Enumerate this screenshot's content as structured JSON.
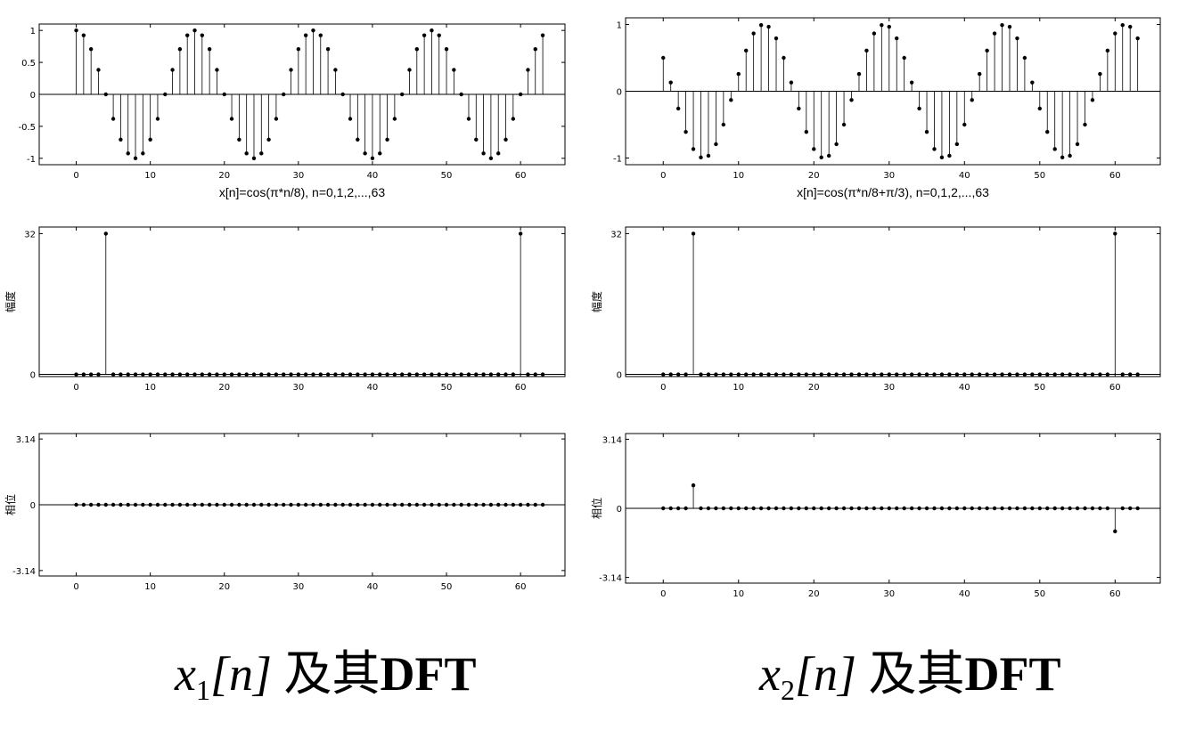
{
  "chart_data": [
    {
      "type": "stem",
      "xlabel": "x[n]=cos(π*n/8),    n=0,1,2,...,63",
      "ylabel": "",
      "xlim": [
        -5,
        66
      ],
      "ylim": [
        -1.1,
        1.1
      ],
      "xticks": [
        0,
        10,
        20,
        30,
        40,
        50,
        60
      ],
      "yticks": [
        1,
        0.5,
        0,
        -0.5,
        -1
      ],
      "ytick_labels": [
        "1",
        "0.5",
        "0",
        "-0.5",
        "-1"
      ],
      "x": [
        0,
        1,
        2,
        3,
        4,
        5,
        6,
        7,
        8,
        9,
        10,
        11,
        12,
        13,
        14,
        15,
        16,
        17,
        18,
        19,
        20,
        21,
        22,
        23,
        24,
        25,
        26,
        27,
        28,
        29,
        30,
        31,
        32,
        33,
        34,
        35,
        36,
        37,
        38,
        39,
        40,
        41,
        42,
        43,
        44,
        45,
        46,
        47,
        48,
        49,
        50,
        51,
        52,
        53,
        54,
        55,
        56,
        57,
        58,
        59,
        60,
        61,
        62,
        63
      ],
      "y": [
        1,
        0.924,
        0.707,
        0.383,
        0,
        -0.383,
        -0.707,
        -0.924,
        -1,
        -0.924,
        -0.707,
        -0.383,
        0,
        0.383,
        0.707,
        0.924,
        1,
        0.924,
        0.707,
        0.383,
        0,
        -0.383,
        -0.707,
        -0.924,
        -1,
        -0.924,
        -0.707,
        -0.383,
        0,
        0.383,
        0.707,
        0.924,
        1,
        0.924,
        0.707,
        0.383,
        0,
        -0.383,
        -0.707,
        -0.924,
        -1,
        -0.924,
        -0.707,
        -0.383,
        0,
        0.383,
        0.707,
        0.924,
        1,
        0.924,
        0.707,
        0.383,
        0,
        -0.383,
        -0.707,
        -0.924,
        -1,
        -0.924,
        -0.707,
        -0.383,
        0,
        0.383,
        0.707,
        0.924
      ]
    },
    {
      "type": "stem",
      "xlabel": "x[n]=cos(π*n/8+π/3),    n=0,1,2,...,63",
      "ylabel": "",
      "xlim": [
        -5,
        66
      ],
      "ylim": [
        -1.1,
        1.1
      ],
      "xticks": [
        0,
        10,
        20,
        30,
        40,
        50,
        60
      ],
      "yticks": [
        1,
        0,
        -1
      ],
      "ytick_labels": [
        "1",
        "0",
        "-1"
      ],
      "x": [
        0,
        1,
        2,
        3,
        4,
        5,
        6,
        7,
        8,
        9,
        10,
        11,
        12,
        13,
        14,
        15,
        16,
        17,
        18,
        19,
        20,
        21,
        22,
        23,
        24,
        25,
        26,
        27,
        28,
        29,
        30,
        31,
        32,
        33,
        34,
        35,
        36,
        37,
        38,
        39,
        40,
        41,
        42,
        43,
        44,
        45,
        46,
        47,
        48,
        49,
        50,
        51,
        52,
        53,
        54,
        55,
        56,
        57,
        58,
        59,
        60,
        61,
        62,
        63
      ],
      "y": [
        0.5,
        0.131,
        -0.259,
        -0.609,
        -0.866,
        -0.991,
        -0.966,
        -0.793,
        -0.5,
        -0.131,
        0.259,
        0.609,
        0.866,
        0.991,
        0.966,
        0.793,
        0.5,
        0.131,
        -0.259,
        -0.609,
        -0.866,
        -0.991,
        -0.966,
        -0.793,
        -0.5,
        -0.131,
        0.259,
        0.609,
        0.866,
        0.991,
        0.966,
        0.793,
        0.5,
        0.131,
        -0.259,
        -0.609,
        -0.866,
        -0.991,
        -0.966,
        -0.793,
        -0.5,
        -0.131,
        0.259,
        0.609,
        0.866,
        0.991,
        0.966,
        0.793,
        0.5,
        0.131,
        -0.259,
        -0.609,
        -0.866,
        -0.991,
        -0.966,
        -0.793,
        -0.5,
        -0.131,
        0.259,
        0.609,
        0.866,
        0.991,
        0.966,
        0.793
      ]
    },
    {
      "type": "stem",
      "xlabel": "",
      "ylabel": "幅度",
      "xlim": [
        -5,
        66
      ],
      "ylim": [
        -0.5,
        33.5
      ],
      "xticks": [
        0,
        10,
        20,
        30,
        40,
        50,
        60
      ],
      "yticks": [
        32,
        0
      ],
      "ytick_labels": [
        "32",
        "0"
      ],
      "x": [
        0,
        1,
        2,
        3,
        4,
        5,
        6,
        7,
        8,
        9,
        10,
        11,
        12,
        13,
        14,
        15,
        16,
        17,
        18,
        19,
        20,
        21,
        22,
        23,
        24,
        25,
        26,
        27,
        28,
        29,
        30,
        31,
        32,
        33,
        34,
        35,
        36,
        37,
        38,
        39,
        40,
        41,
        42,
        43,
        44,
        45,
        46,
        47,
        48,
        49,
        50,
        51,
        52,
        53,
        54,
        55,
        56,
        57,
        58,
        59,
        60,
        61,
        62,
        63
      ],
      "y": [
        0,
        0,
        0,
        0,
        32,
        0,
        0,
        0,
        0,
        0,
        0,
        0,
        0,
        0,
        0,
        0,
        0,
        0,
        0,
        0,
        0,
        0,
        0,
        0,
        0,
        0,
        0,
        0,
        0,
        0,
        0,
        0,
        0,
        0,
        0,
        0,
        0,
        0,
        0,
        0,
        0,
        0,
        0,
        0,
        0,
        0,
        0,
        0,
        0,
        0,
        0,
        0,
        0,
        0,
        0,
        0,
        0,
        0,
        0,
        0,
        32,
        0,
        0,
        0
      ]
    },
    {
      "type": "stem",
      "xlabel": "",
      "ylabel": "幅度",
      "xlim": [
        -5,
        66
      ],
      "ylim": [
        -0.5,
        33.5
      ],
      "xticks": [
        0,
        10,
        20,
        30,
        40,
        50,
        60
      ],
      "yticks": [
        32,
        0
      ],
      "ytick_labels": [
        "32",
        "0"
      ],
      "x": [
        0,
        1,
        2,
        3,
        4,
        5,
        6,
        7,
        8,
        9,
        10,
        11,
        12,
        13,
        14,
        15,
        16,
        17,
        18,
        19,
        20,
        21,
        22,
        23,
        24,
        25,
        26,
        27,
        28,
        29,
        30,
        31,
        32,
        33,
        34,
        35,
        36,
        37,
        38,
        39,
        40,
        41,
        42,
        43,
        44,
        45,
        46,
        47,
        48,
        49,
        50,
        51,
        52,
        53,
        54,
        55,
        56,
        57,
        58,
        59,
        60,
        61,
        62,
        63
      ],
      "y": [
        0,
        0,
        0,
        0,
        32,
        0,
        0,
        0,
        0,
        0,
        0,
        0,
        0,
        0,
        0,
        0,
        0,
        0,
        0,
        0,
        0,
        0,
        0,
        0,
        0,
        0,
        0,
        0,
        0,
        0,
        0,
        0,
        0,
        0,
        0,
        0,
        0,
        0,
        0,
        0,
        0,
        0,
        0,
        0,
        0,
        0,
        0,
        0,
        0,
        0,
        0,
        0,
        0,
        0,
        0,
        0,
        0,
        0,
        0,
        0,
        32,
        0,
        0,
        0
      ]
    },
    {
      "type": "stem",
      "xlabel": "",
      "ylabel": "相位",
      "xlim": [
        -5,
        66
      ],
      "ylim": [
        -3.4,
        3.4
      ],
      "xticks": [
        0,
        10,
        20,
        30,
        40,
        50,
        60
      ],
      "yticks": [
        3.14,
        0,
        -3.14
      ],
      "ytick_labels": [
        "3.14",
        "0",
        "-3.14"
      ],
      "x": [
        0,
        1,
        2,
        3,
        4,
        5,
        6,
        7,
        8,
        9,
        10,
        11,
        12,
        13,
        14,
        15,
        16,
        17,
        18,
        19,
        20,
        21,
        22,
        23,
        24,
        25,
        26,
        27,
        28,
        29,
        30,
        31,
        32,
        33,
        34,
        35,
        36,
        37,
        38,
        39,
        40,
        41,
        42,
        43,
        44,
        45,
        46,
        47,
        48,
        49,
        50,
        51,
        52,
        53,
        54,
        55,
        56,
        57,
        58,
        59,
        60,
        61,
        62,
        63
      ],
      "y": [
        0,
        0,
        0,
        0,
        0,
        0,
        0,
        0,
        0,
        0,
        0,
        0,
        0,
        0,
        0,
        0,
        0,
        0,
        0,
        0,
        0,
        0,
        0,
        0,
        0,
        0,
        0,
        0,
        0,
        0,
        0,
        0,
        0,
        0,
        0,
        0,
        0,
        0,
        0,
        0,
        0,
        0,
        0,
        0,
        0,
        0,
        0,
        0,
        0,
        0,
        0,
        0,
        0,
        0,
        0,
        0,
        0,
        0,
        0,
        0,
        0,
        0,
        0,
        0
      ]
    },
    {
      "type": "stem",
      "xlabel": "",
      "ylabel": "相位",
      "xlim": [
        -5,
        66
      ],
      "ylim": [
        -3.4,
        3.4
      ],
      "xticks": [
        0,
        10,
        20,
        30,
        40,
        50,
        60
      ],
      "yticks": [
        3.14,
        0,
        -3.14
      ],
      "ytick_labels": [
        "3.14",
        "0",
        "-3.14"
      ],
      "x": [
        0,
        1,
        2,
        3,
        4,
        5,
        6,
        7,
        8,
        9,
        10,
        11,
        12,
        13,
        14,
        15,
        16,
        17,
        18,
        19,
        20,
        21,
        22,
        23,
        24,
        25,
        26,
        27,
        28,
        29,
        30,
        31,
        32,
        33,
        34,
        35,
        36,
        37,
        38,
        39,
        40,
        41,
        42,
        43,
        44,
        45,
        46,
        47,
        48,
        49,
        50,
        51,
        52,
        53,
        54,
        55,
        56,
        57,
        58,
        59,
        60,
        61,
        62,
        63
      ],
      "y": [
        0,
        0,
        0,
        0,
        1.047,
        0,
        0,
        0,
        0,
        0,
        0,
        0,
        0,
        0,
        0,
        0,
        0,
        0,
        0,
        0,
        0,
        0,
        0,
        0,
        0,
        0,
        0,
        0,
        0,
        0,
        0,
        0,
        0,
        0,
        0,
        0,
        0,
        0,
        0,
        0,
        0,
        0,
        0,
        0,
        0,
        0,
        0,
        0,
        0,
        0,
        0,
        0,
        0,
        0,
        0,
        0,
        0,
        0,
        0,
        0,
        -1.047,
        0,
        0,
        0
      ]
    }
  ],
  "captions": {
    "left": {
      "var": "x",
      "sub": "1",
      "index": "[n]",
      "text_cn": "及其",
      "text_bold": "DFT"
    },
    "right": {
      "var": "x",
      "sub": "2",
      "index": "[n]",
      "text_cn": "及其",
      "text_bold": "DFT"
    }
  }
}
